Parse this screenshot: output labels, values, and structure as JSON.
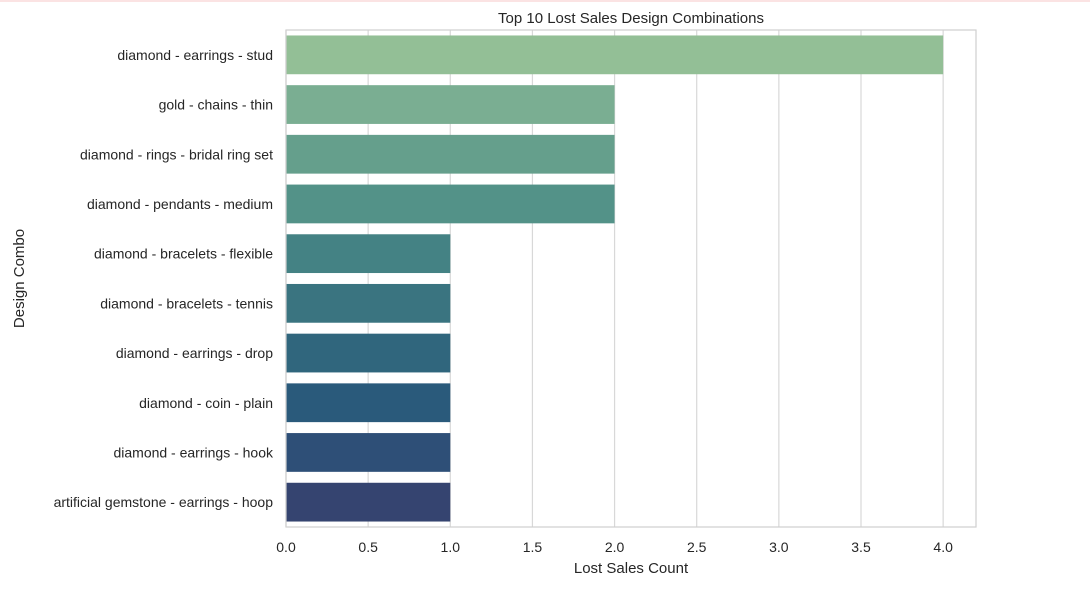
{
  "chart_data": {
    "type": "bar",
    "orientation": "horizontal",
    "title": "Top 10 Lost Sales Design Combinations",
    "xlabel": "Lost Sales Count",
    "ylabel": "Design Combo",
    "categories": [
      "diamond - earrings - stud",
      "gold - chains - thin",
      "diamond - rings - bridal ring set",
      "diamond - pendants - medium",
      "diamond - bracelets - flexible",
      "diamond - bracelets - tennis",
      "diamond - earrings - drop",
      "diamond - coin - plain",
      "diamond - earrings - hook",
      "artificial gemstone - earrings - hoop"
    ],
    "values": [
      4,
      2,
      2,
      2,
      1,
      1,
      1,
      1,
      1,
      1
    ],
    "colors": [
      "#93bf96",
      "#7aae92",
      "#659f8c",
      "#539288",
      "#448284",
      "#3a7480",
      "#30667d",
      "#2a5a7b",
      "#2e4f77",
      "#354470"
    ],
    "xlim": [
      0,
      4.2
    ],
    "xticks": [
      "0.0",
      "0.5",
      "1.0",
      "1.5",
      "2.0",
      "2.5",
      "3.0",
      "3.5",
      "4.0"
    ],
    "grid": true
  }
}
